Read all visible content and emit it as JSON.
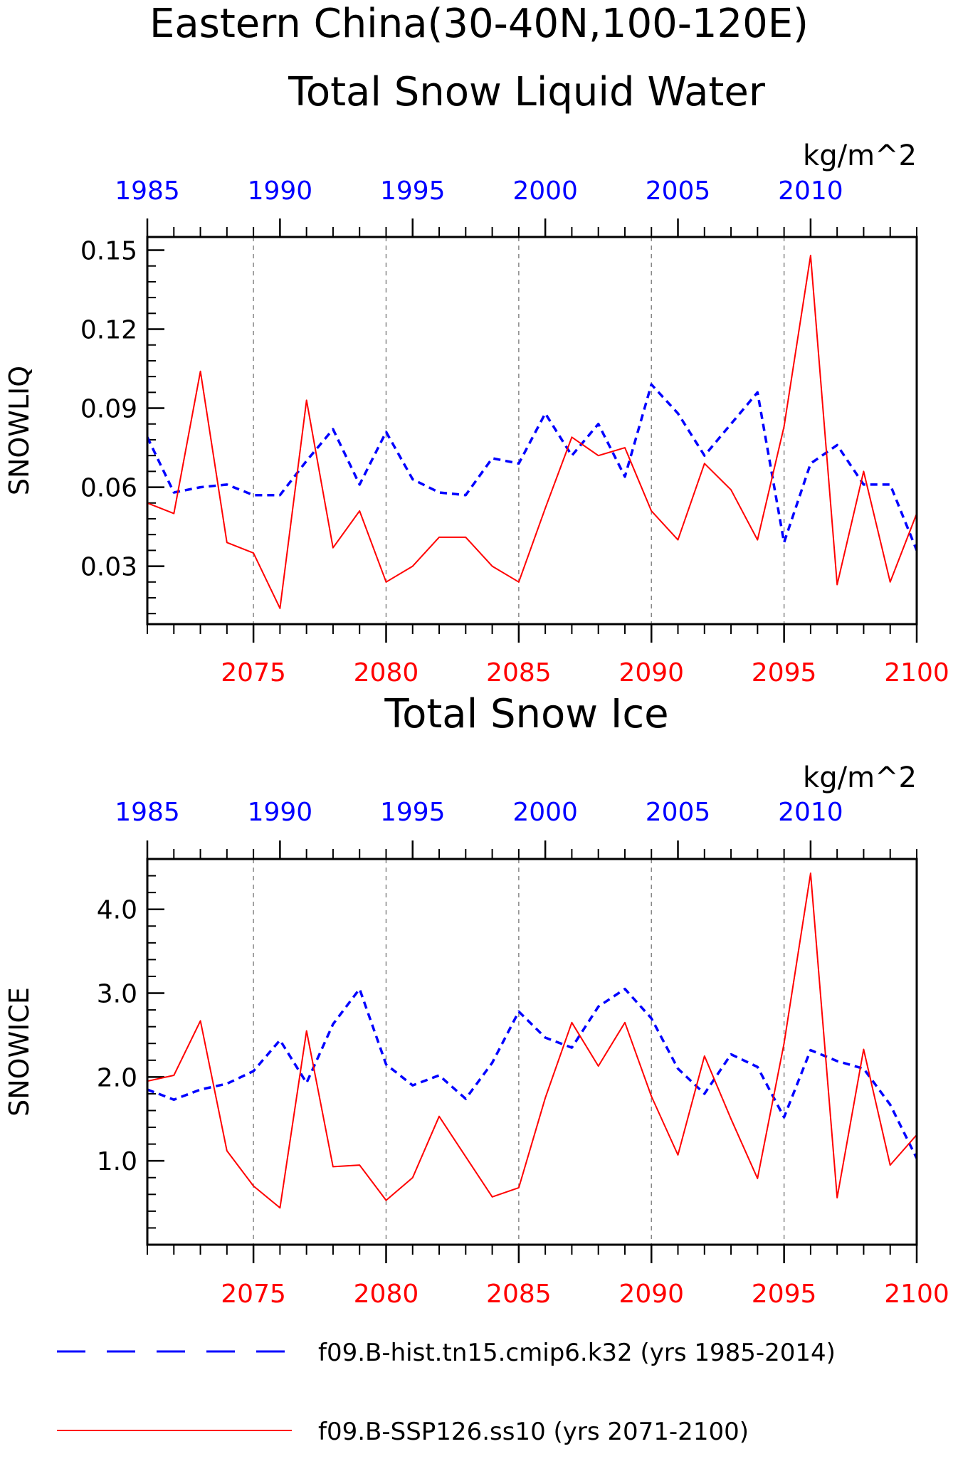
{
  "page": {
    "title_line1": "Eastern China(30-40N,100-120E)"
  },
  "chart_data": [
    {
      "type": "line",
      "title": "Total Snow Liquid Water",
      "ylabel": "SNOWLIQ",
      "units": "kg/m^2",
      "ylim": [
        0.008,
        0.155
      ],
      "yticks": [
        0.03,
        0.06,
        0.09,
        0.12,
        0.15
      ],
      "ytick_labels": [
        "0.03",
        "0.06",
        "0.09",
        "0.12",
        "0.15"
      ],
      "bottom_axis": {
        "xlim": [
          2071,
          2100
        ],
        "ticks": [
          2075,
          2080,
          2085,
          2090,
          2095,
          2100
        ],
        "color": "#ff0000"
      },
      "top_axis": {
        "xlim": [
          1985,
          2014
        ],
        "ticks": [
          1985,
          1990,
          1995,
          2000,
          2005,
          2010
        ],
        "color": "#0000ff"
      },
      "grid_x": [
        2075,
        2080,
        2085,
        2090,
        2095
      ],
      "series": [
        {
          "name": "f09.B-hist.tn15.cmip6.k32 (yrs 1985-2014)",
          "style": "dashed",
          "color": "#0000ff",
          "axis": "top",
          "x": [
            1985,
            1986,
            1987,
            1988,
            1989,
            1990,
            1991,
            1992,
            1993,
            1994,
            1995,
            1996,
            1997,
            1998,
            1999,
            2000,
            2001,
            2002,
            2003,
            2004,
            2005,
            2006,
            2007,
            2008,
            2009,
            2010,
            2011,
            2012,
            2013,
            2014
          ],
          "values": [
            0.079,
            0.058,
            0.06,
            0.061,
            0.057,
            0.057,
            0.07,
            0.082,
            0.061,
            0.081,
            0.063,
            0.058,
            0.057,
            0.071,
            0.069,
            0.088,
            0.072,
            0.084,
            0.064,
            0.099,
            0.088,
            0.072,
            0.084,
            0.096,
            0.039,
            0.069,
            0.076,
            0.061,
            0.061,
            0.036
          ]
        },
        {
          "name": "f09.B-SSP126.ss10 (yrs 2071-2100)",
          "style": "solid",
          "color": "#ff0000",
          "axis": "bottom",
          "x": [
            2071,
            2072,
            2073,
            2074,
            2075,
            2076,
            2077,
            2078,
            2079,
            2080,
            2081,
            2082,
            2083,
            2084,
            2085,
            2086,
            2087,
            2088,
            2089,
            2090,
            2091,
            2092,
            2093,
            2094,
            2095,
            2096,
            2097,
            2098,
            2099,
            2100
          ],
          "values": [
            0.054,
            0.05,
            0.104,
            0.039,
            0.035,
            0.014,
            0.093,
            0.037,
            0.051,
            0.024,
            0.03,
            0.041,
            0.041,
            0.03,
            0.024,
            0.052,
            0.079,
            0.072,
            0.075,
            0.051,
            0.04,
            0.069,
            0.059,
            0.04,
            0.083,
            0.148,
            0.023,
            0.066,
            0.024,
            0.05
          ]
        }
      ]
    },
    {
      "type": "line",
      "title": "Total Snow Ice",
      "ylabel": "SNOWICE",
      "units": "kg/m^2",
      "ylim": [
        0.0,
        4.6
      ],
      "yticks": [
        1.0,
        2.0,
        3.0,
        4.0
      ],
      "ytick_labels": [
        "1.0",
        "2.0",
        "3.0",
        "4.0"
      ],
      "bottom_axis": {
        "xlim": [
          2071,
          2100
        ],
        "ticks": [
          2075,
          2080,
          2085,
          2090,
          2095,
          2100
        ],
        "color": "#ff0000"
      },
      "top_axis": {
        "xlim": [
          1985,
          2014
        ],
        "ticks": [
          1985,
          1990,
          1995,
          2000,
          2005,
          2010
        ],
        "color": "#0000ff"
      },
      "grid_x": [
        2075,
        2080,
        2085,
        2090,
        2095
      ],
      "series": [
        {
          "name": "f09.B-hist.tn15.cmip6.k32 (yrs 1985-2014)",
          "style": "dashed",
          "color": "#0000ff",
          "axis": "top",
          "x": [
            1985,
            1986,
            1987,
            1988,
            1989,
            1990,
            1991,
            1992,
            1993,
            1994,
            1995,
            1996,
            1997,
            1998,
            1999,
            2000,
            2001,
            2002,
            2003,
            2004,
            2005,
            2006,
            2007,
            2008,
            2009,
            2010,
            2011,
            2012,
            2013,
            2014
          ],
          "values": [
            1.85,
            1.73,
            1.85,
            1.92,
            2.07,
            2.44,
            1.93,
            2.63,
            3.05,
            2.15,
            1.9,
            2.02,
            1.74,
            2.17,
            2.78,
            2.47,
            2.35,
            2.84,
            3.05,
            2.7,
            2.1,
            1.8,
            2.27,
            2.12,
            1.52,
            2.32,
            2.19,
            2.1,
            1.67,
            1.03
          ]
        },
        {
          "name": "f09.B-SSP126.ss10 (yrs 2071-2100)",
          "style": "solid",
          "color": "#ff0000",
          "axis": "bottom",
          "x": [
            2071,
            2072,
            2073,
            2074,
            2075,
            2076,
            2077,
            2078,
            2079,
            2080,
            2081,
            2082,
            2083,
            2084,
            2085,
            2086,
            2087,
            2088,
            2089,
            2090,
            2091,
            2092,
            2093,
            2094,
            2095,
            2096,
            2097,
            2098,
            2099,
            2100
          ],
          "values": [
            1.95,
            2.02,
            2.67,
            1.12,
            0.7,
            0.44,
            2.55,
            0.93,
            0.95,
            0.53,
            0.8,
            1.53,
            1.05,
            0.57,
            0.68,
            1.75,
            2.65,
            2.13,
            2.65,
            1.77,
            1.07,
            2.25,
            1.5,
            0.79,
            2.4,
            4.43,
            0.56,
            2.33,
            0.95,
            1.31
          ]
        }
      ]
    }
  ],
  "legend": {
    "placement": "bottom",
    "items": [
      {
        "label": "f09.B-hist.tn15.cmip6.k32 (yrs 1985-2014)",
        "style": "dashed",
        "color": "#0000ff"
      },
      {
        "label": "f09.B-SSP126.ss10 (yrs 2071-2100)",
        "style": "solid",
        "color": "#ff0000"
      }
    ]
  }
}
